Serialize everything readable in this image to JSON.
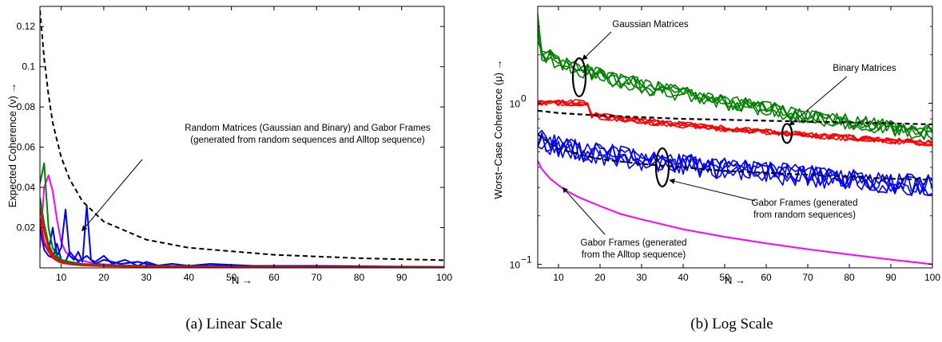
{
  "chart_data": [
    {
      "type": "line",
      "panel": "a",
      "caption": "(a) Linear Scale",
      "xlabel": "N →",
      "ylabel": "Expected Coherence (ν) →",
      "xlim": [
        5,
        100
      ],
      "ylim": [
        0,
        0.13
      ],
      "yscale": "linear",
      "xticks": [
        10,
        20,
        30,
        40,
        50,
        60,
        70,
        80,
        90,
        100
      ],
      "yticks": [
        0.02,
        0.04,
        0.06,
        0.08,
        0.1,
        0.12
      ],
      "ytick_labels": [
        "0.02",
        "0.04",
        "0.06",
        "0.08",
        "0.1",
        "0.12"
      ],
      "grid": false,
      "colors": {
        "bound": "#000000",
        "gaussian": "#008000",
        "binary": "#ff0000",
        "gabor_random": "#0000ff",
        "gabor_alltop": "#ff00ff"
      },
      "annotations": [
        {
          "text_lines": [
            "Random Matrices (Gaussian and Binary) and Gabor Frames",
            "(generated from random sequences and Alltop sequence)"
          ],
          "arrow_target": [
            13,
            0.007
          ]
        }
      ],
      "bound_curve": {
        "x": [
          5,
          6,
          7,
          8,
          10,
          12,
          15,
          20,
          30,
          40,
          60,
          80,
          100
        ],
        "y": [
          0.128,
          0.104,
          0.086,
          0.072,
          0.055,
          0.044,
          0.033,
          0.023,
          0.014,
          0.01,
          0.0065,
          0.0048,
          0.0038
        ]
      },
      "series": [
        {
          "group": "gabor_alltop",
          "x": [
            5,
            6,
            7,
            8,
            9,
            10,
            11,
            12,
            14,
            16,
            18,
            20,
            25,
            30,
            40,
            60,
            100
          ],
          "y": [
            0.01,
            0.04,
            0.046,
            0.038,
            0.024,
            0.013,
            0.008,
            0.006,
            0.004,
            0.003,
            0.0022,
            0.0018,
            0.0012,
            0.0009,
            0.0006,
            0.0003,
            0.0001
          ]
        },
        {
          "group": "gabor_random",
          "x": [
            5,
            6,
            7,
            8,
            9,
            10,
            11,
            12,
            13,
            14,
            15,
            16,
            17,
            18,
            20,
            22,
            25,
            28,
            30,
            33,
            36,
            40,
            45,
            50,
            55,
            60,
            70,
            80,
            90,
            100
          ],
          "y": [
            0.025,
            0.012,
            0.008,
            0.02,
            0.006,
            0.01,
            0.029,
            0.006,
            0.004,
            0.008,
            0.003,
            0.031,
            0.004,
            0.003,
            0.006,
            0.002,
            0.004,
            0.001,
            0.003,
            0.001,
            0.002,
            0.001,
            0.002,
            0.0015,
            0.001,
            0.001,
            0.001,
            0.0008,
            0.0006,
            0.0005
          ]
        },
        {
          "group": "gabor_random",
          "x": [
            5,
            6,
            7,
            8,
            9,
            10,
            11,
            12,
            14,
            16,
            18,
            20,
            24,
            28,
            32,
            36,
            40,
            50,
            60,
            70,
            80,
            90,
            100
          ],
          "y": [
            0.02,
            0.009,
            0.006,
            0.005,
            0.012,
            0.004,
            0.003,
            0.008,
            0.003,
            0.006,
            0.002,
            0.004,
            0.002,
            0.003,
            0.001,
            0.002,
            0.001,
            0.0012,
            0.0008,
            0.0007,
            0.0006,
            0.0005,
            0.0004
          ]
        },
        {
          "group": "gaussian",
          "x": [
            5,
            6,
            7,
            8,
            9,
            10,
            12,
            15,
            20,
            30,
            50,
            100
          ],
          "y": [
            0.042,
            0.052,
            0.02,
            0.01,
            0.006,
            0.004,
            0.003,
            0.002,
            0.0015,
            0.001,
            0.0006,
            0.0003
          ]
        },
        {
          "group": "gaussian",
          "x": [
            5,
            6,
            7,
            8,
            9,
            10,
            12,
            15,
            20,
            30,
            50,
            100
          ],
          "y": [
            0.035,
            0.022,
            0.012,
            0.007,
            0.005,
            0.0035,
            0.0025,
            0.0018,
            0.0012,
            0.0008,
            0.0005,
            0.0002
          ]
        },
        {
          "group": "binary",
          "x": [
            5,
            6,
            7,
            8,
            9,
            10,
            12,
            15,
            20,
            30,
            50,
            100
          ],
          "y": [
            0.03,
            0.018,
            0.01,
            0.006,
            0.004,
            0.003,
            0.002,
            0.0014,
            0.001,
            0.0007,
            0.0004,
            0.0002
          ]
        },
        {
          "group": "binary",
          "x": [
            5,
            6,
            7,
            8,
            9,
            10,
            12,
            15,
            20,
            30,
            50,
            100
          ],
          "y": [
            0.024,
            0.013,
            0.008,
            0.005,
            0.0035,
            0.0025,
            0.0018,
            0.0012,
            0.0008,
            0.0005,
            0.0003,
            0.0001
          ]
        }
      ]
    },
    {
      "type": "line",
      "panel": "b",
      "caption": "(b) Log Scale",
      "xlabel": "N →",
      "ylabel": "Worst−Case Coherence (μ) →",
      "xlim": [
        5,
        100
      ],
      "ylim": [
        0.095,
        4.0
      ],
      "yscale": "log",
      "xticks": [
        10,
        20,
        30,
        40,
        50,
        60,
        70,
        80,
        90,
        100
      ],
      "yticks": [
        1,
        0.1
      ],
      "ytick_bases": [
        "10",
        "10"
      ],
      "ytick_exponents": [
        "0",
        "−1"
      ],
      "grid": false,
      "colors": {
        "bound": "#000000",
        "gaussian": "#008000",
        "binary": "#ff0000",
        "gabor_random": "#0000ff",
        "gabor_alltop": "#ff00ff"
      },
      "annotations": [
        {
          "text_lines": [
            "Gaussian Matrices"
          ],
          "arrow_target": [
            15,
            1.7
          ]
        },
        {
          "text_lines": [
            "Binary Matrices"
          ],
          "arrow_target": [
            65,
            0.63
          ]
        },
        {
          "text_lines": [
            "Gabor Frames (generated",
            "from random sequences)"
          ],
          "arrow_target": [
            36,
            0.36
          ]
        },
        {
          "text_lines": [
            "Gabor Frames (generated",
            "from the Alltop sequence)"
          ],
          "arrow_target": [
            11,
            0.32
          ]
        }
      ],
      "bound_curves": [
        {
          "x": [
            5,
            10,
            20,
            30,
            40,
            50,
            60,
            70,
            80,
            90,
            100
          ],
          "y": [
            0.9,
            0.87,
            0.84,
            0.82,
            0.8,
            0.79,
            0.78,
            0.77,
            0.76,
            0.75,
            0.74
          ]
        },
        {
          "x": [
            5,
            10,
            20,
            30,
            40,
            50,
            60,
            70,
            80,
            90,
            100
          ],
          "y": [
            0.64,
            0.52,
            0.45,
            0.42,
            0.4,
            0.38,
            0.37,
            0.36,
            0.35,
            0.34,
            0.335
          ]
        }
      ],
      "series_groups": [
        {
          "group": "gaussian",
          "start": 2.2,
          "end": 0.64,
          "count": 5,
          "noise": 0.13,
          "first_value": 3.6
        },
        {
          "group": "binary",
          "start": 1.0,
          "end": 0.56,
          "count": 5,
          "noise": 0.05,
          "flat_until": 17
        },
        {
          "group": "gabor_random",
          "start": 0.6,
          "end": 0.3,
          "count": 5,
          "noise": 0.18
        },
        {
          "group": "gabor_alltop",
          "x": [
            5,
            6,
            8,
            10,
            12,
            15,
            20,
            25,
            30,
            40,
            50,
            60,
            70,
            80,
            90,
            100
          ],
          "y": [
            0.44,
            0.39,
            0.34,
            0.31,
            0.285,
            0.26,
            0.23,
            0.205,
            0.19,
            0.165,
            0.148,
            0.135,
            0.124,
            0.115,
            0.107,
            0.1
          ]
        }
      ]
    }
  ]
}
